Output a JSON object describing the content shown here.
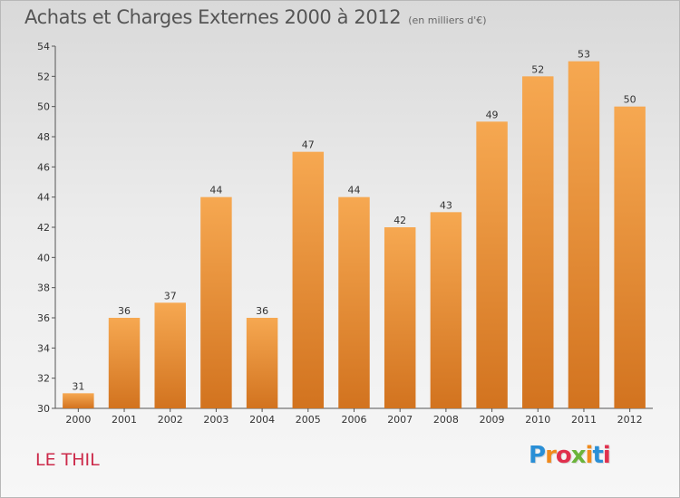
{
  "chart_data": {
    "type": "bar",
    "title": "Achats et Charges Externes 2000 à 2012",
    "subtitle": "(en milliers d'€)",
    "categories": [
      "2000",
      "2001",
      "2002",
      "2003",
      "2004",
      "2005",
      "2006",
      "2007",
      "2008",
      "2009",
      "2010",
      "2011",
      "2012"
    ],
    "values": [
      31,
      36,
      37,
      44,
      36,
      47,
      44,
      42,
      43,
      49,
      52,
      53,
      50
    ],
    "ylim": [
      30,
      54
    ],
    "yticks": [
      30,
      32,
      34,
      36,
      38,
      40,
      42,
      44,
      46,
      48,
      50,
      52,
      54
    ],
    "xlabel": "",
    "ylabel": "",
    "grid": false,
    "bar_color_top": "#f6a851",
    "bar_color_bottom": "#d2731f"
  },
  "place_name": "LE THIL",
  "logo": {
    "text": "Proxiti",
    "letter_colors": [
      "#2a8fd6",
      "#f08a1c",
      "#e0304d",
      "#6bb43a",
      "#f08a1c",
      "#2a8fd6",
      "#e0304d"
    ]
  }
}
